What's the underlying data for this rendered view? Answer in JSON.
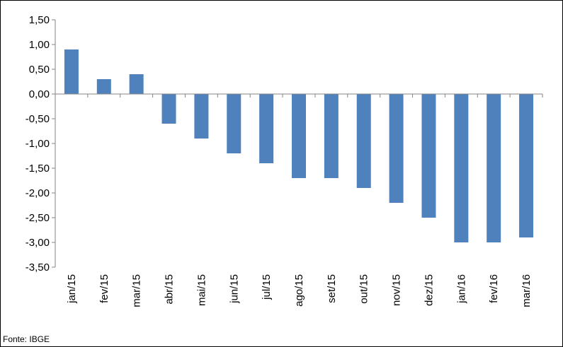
{
  "source": "Fonte: IBGE",
  "colors": {
    "bar": "#4F81BD",
    "axis": "#868686"
  },
  "chart_data": {
    "type": "bar",
    "title": "",
    "xlabel": "",
    "ylabel": "",
    "categories": [
      "jan/15",
      "fev/15",
      "mar/15",
      "abr/15",
      "mai/15",
      "jun/15",
      "jul/15",
      "ago/15",
      "set/15",
      "out/15",
      "nov/15",
      "dez/15",
      "jan/16",
      "fev/16",
      "mar/16"
    ],
    "values": [
      0.9,
      0.3,
      0.4,
      -0.6,
      -0.9,
      -1.2,
      -1.4,
      -1.7,
      -1.7,
      -1.9,
      -2.2,
      -2.5,
      -3.0,
      -3.0,
      -2.9
    ],
    "ylim": [
      -3.5,
      1.5
    ],
    "y_ticks": [
      1.5,
      1.0,
      0.5,
      0.0,
      -0.5,
      -1.0,
      -1.5,
      -2.0,
      -2.5,
      -3.0,
      -3.5
    ],
    "y_tick_labels": [
      "1,50",
      "1,00",
      "0,50",
      "0,00",
      "-0,50",
      "-1,00",
      "-1,50",
      "-2,00",
      "-2,50",
      "-3,00",
      "-3,50"
    ],
    "grid": false,
    "legend": "none"
  }
}
